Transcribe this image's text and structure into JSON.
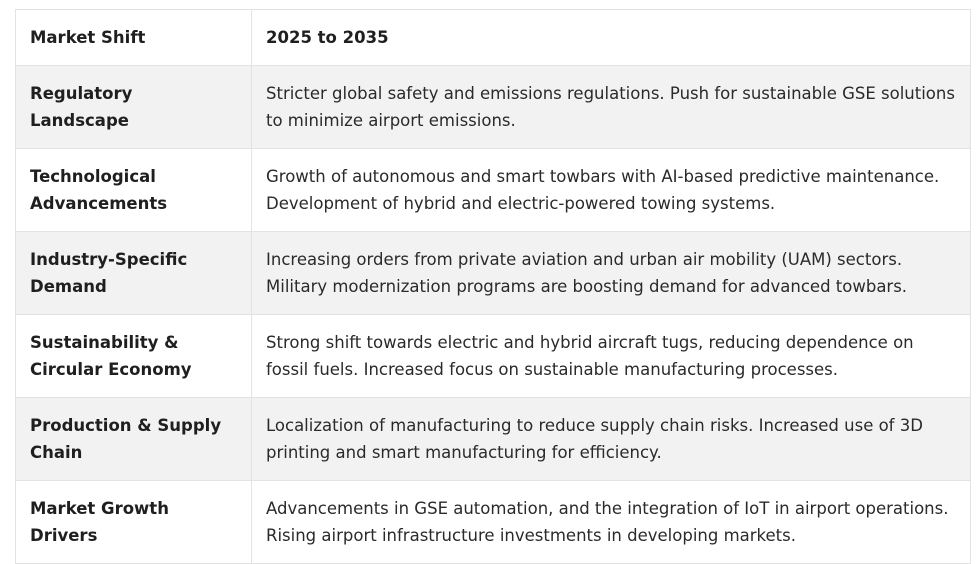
{
  "table": {
    "headers": [
      "Market Shift",
      "2025 to 2035"
    ],
    "rows": [
      {
        "shift": "Regulatory Landscape",
        "desc": "Stricter global safety and emissions regulations. Push for sustainable GSE solutions to minimize airport emissions."
      },
      {
        "shift": "Technological Advancements",
        "desc": "Growth of autonomous and smart towbars with AI-based predictive maintenance. Development of hybrid and electric-powered towing systems."
      },
      {
        "shift": "Industry-Specific Demand",
        "desc": "Increasing orders from private aviation and urban air mobility (UAM) sectors. Military modernization programs are boosting demand for advanced towbars."
      },
      {
        "shift": "Sustainability & Circular Economy",
        "desc": "Strong shift towards electric and hybrid aircraft tugs, reducing dependence on fossil fuels. Increased focus on sustainable manufacturing processes."
      },
      {
        "shift": "Production & Supply Chain",
        "desc": "Localization of manufacturing to reduce supply chain risks. Increased use of 3D printing and smart manufacturing for efficiency."
      },
      {
        "shift": "Market Growth Drivers",
        "desc": "Advancements in GSE automation, and the integration of IoT in airport operations. Rising airport infrastructure investments in developing markets."
      }
    ]
  }
}
